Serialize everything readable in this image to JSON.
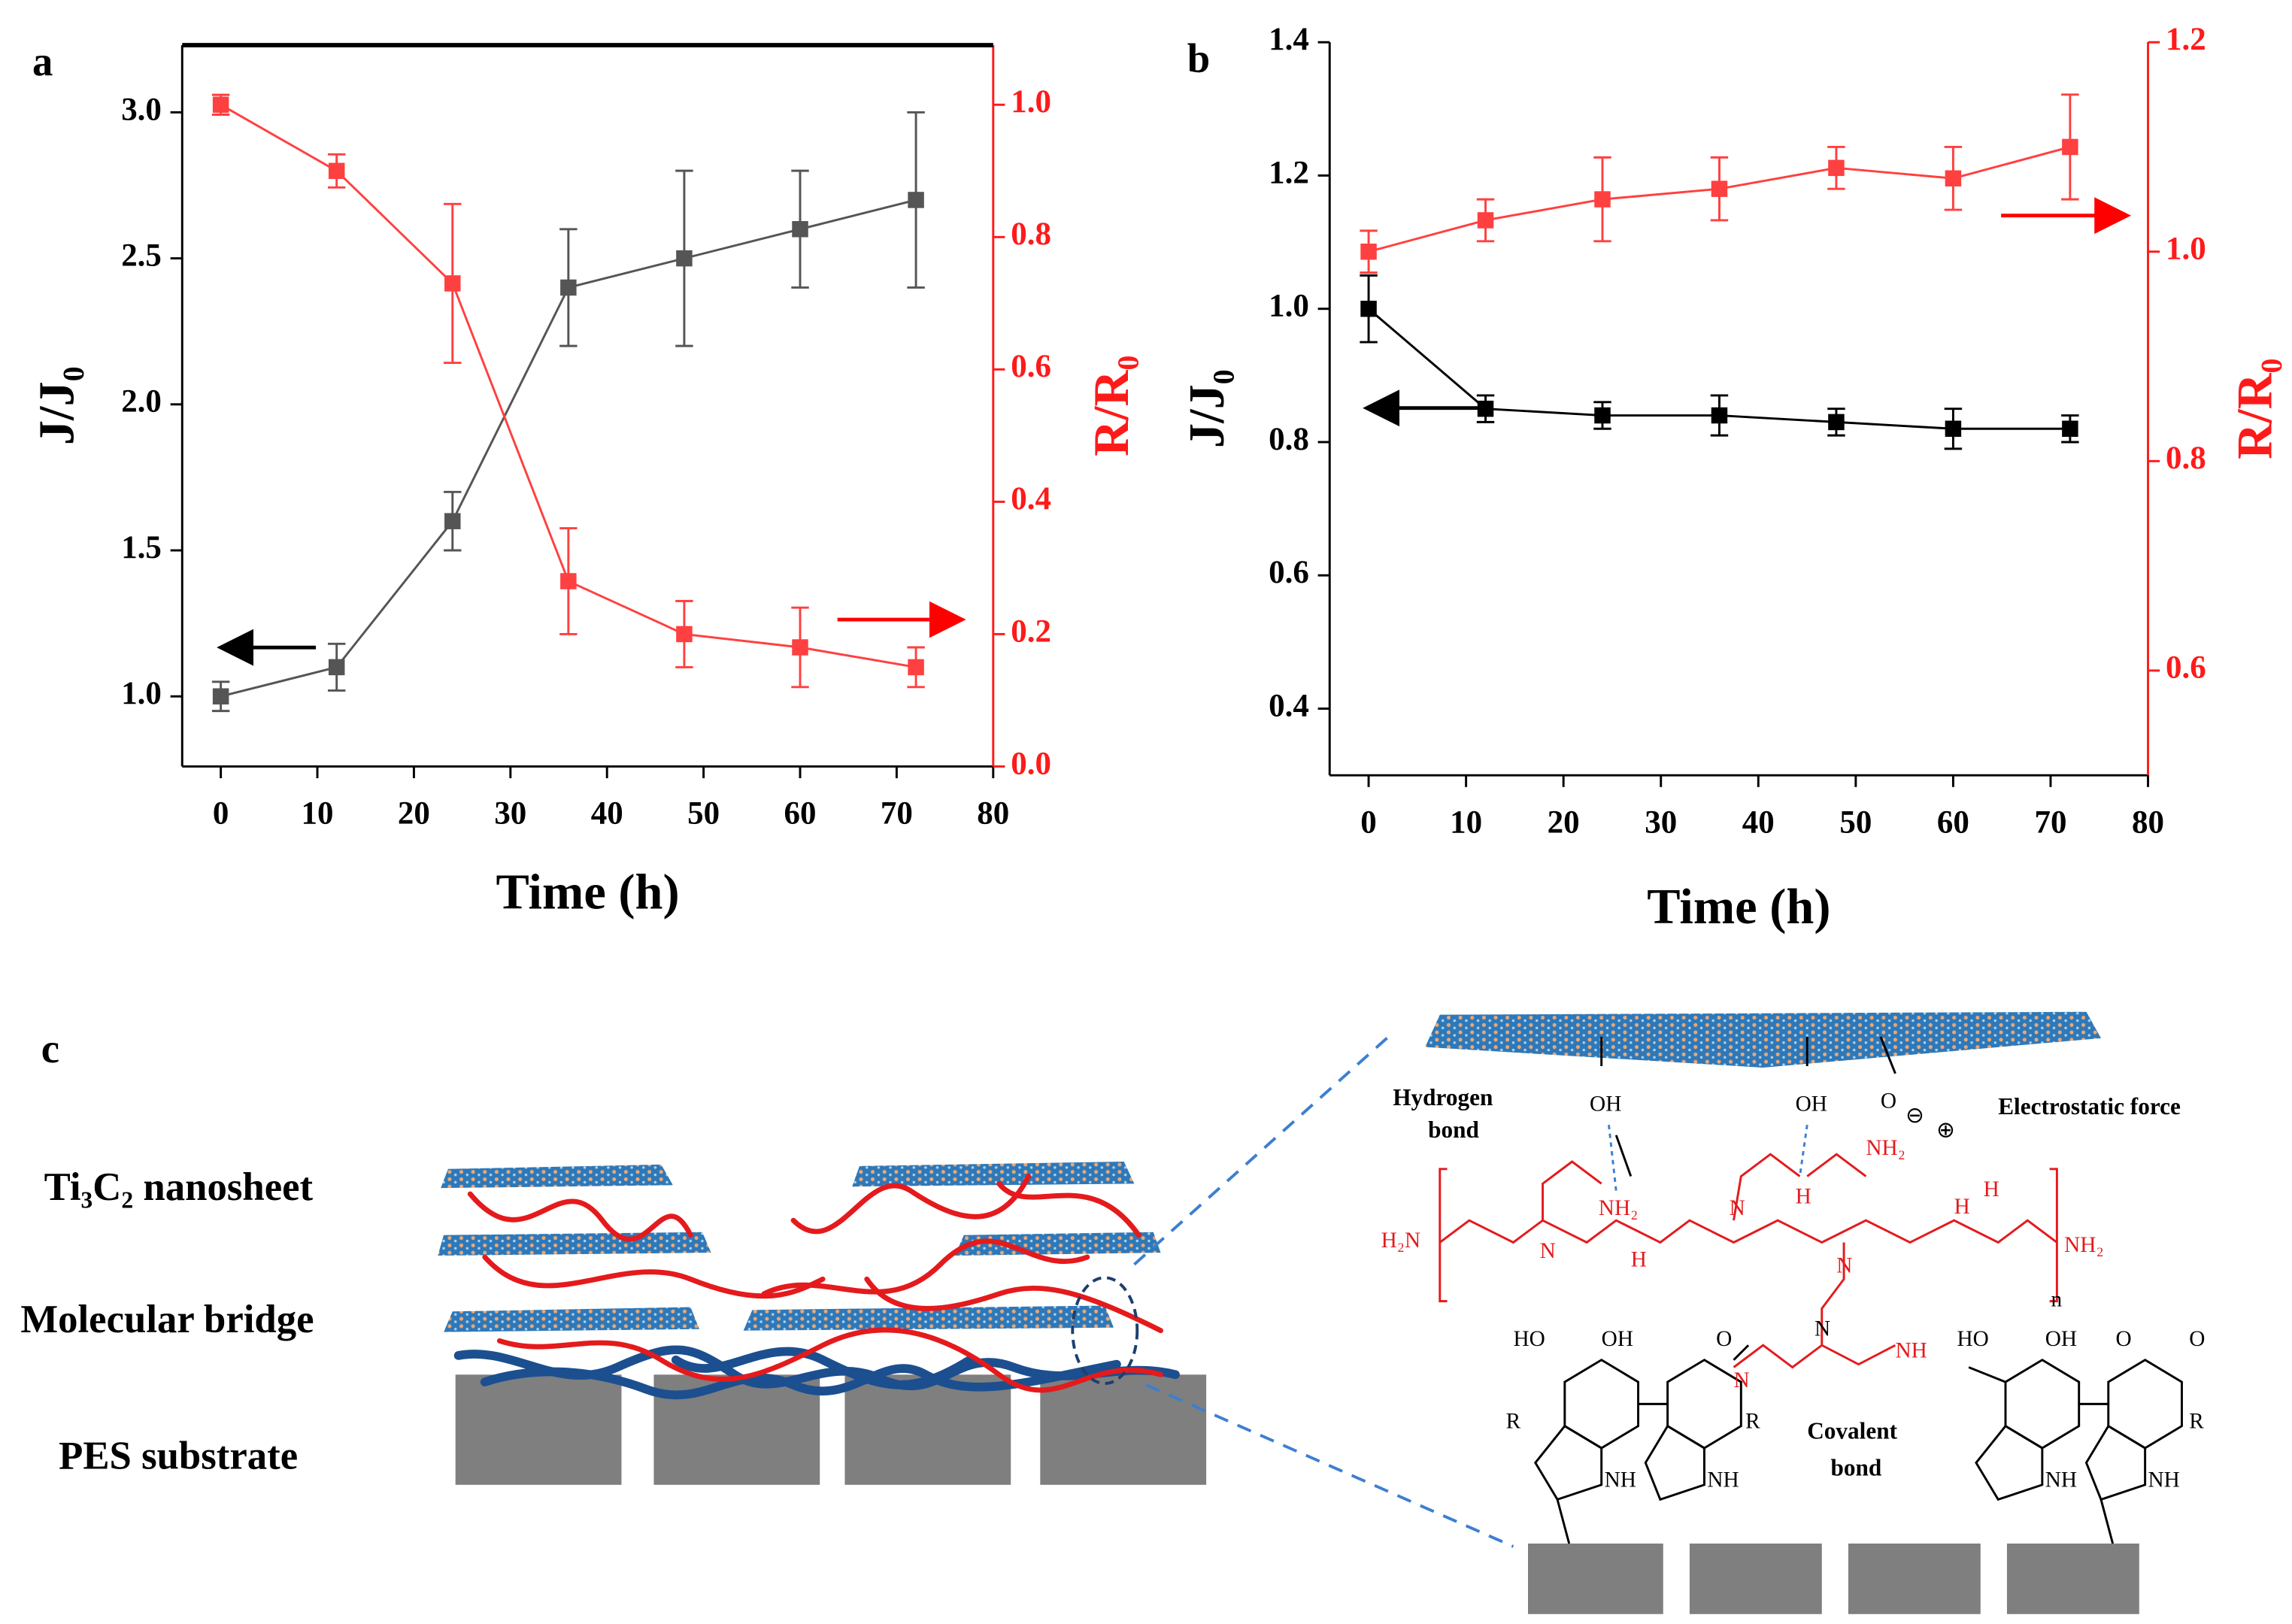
{
  "chart_data": [
    {
      "type": "line",
      "title": "a",
      "xlabel": "Time (h)",
      "ylabel": "J/J₀",
      "y2label": "R/R₀",
      "x": [
        0,
        12,
        24,
        36,
        48,
        60,
        72
      ],
      "xlim": [
        -4,
        80
      ],
      "xticks": [
        0,
        10,
        20,
        30,
        40,
        50,
        60,
        70,
        80
      ],
      "ylim": [
        0.76,
        3.23
      ],
      "yticks": [
        {
          "value": 1,
          "label": "1.0"
        },
        1.5,
        {
          "value": 2,
          "label": "2.0"
        },
        2.5,
        {
          "value": 3,
          "label": "3.0"
        }
      ],
      "y2lim": [
        0,
        1.09
      ],
      "y2ticks": [
        {
          "value": 0,
          "label": "0.0"
        },
        0.2,
        0.4,
        0.6,
        0.8,
        {
          "value": 1,
          "label": "1.0"
        }
      ],
      "series": [
        {
          "name": "J/J₀",
          "color": "#555555",
          "values": [
            1.0,
            1.1,
            1.6,
            2.4,
            2.5,
            2.6,
            2.7
          ],
          "errors": [
            0.05,
            0.08,
            0.1,
            0.2,
            0.3,
            0.2,
            0.3
          ]
        },
        {
          "name": "R/R₀",
          "color": "#ff4040",
          "axis": "y2",
          "values": [
            1.0,
            0.9,
            0.73,
            0.28,
            0.2,
            0.18,
            0.15
          ],
          "errors": [
            0.015,
            0.025,
            0.12,
            0.08,
            0.05,
            0.06,
            0.03
          ]
        }
      ]
    },
    {
      "type": "line",
      "title": "b",
      "xlabel": "Time (h)",
      "ylabel": "J/J₀",
      "y2label": "R/R₀",
      "x": [
        0,
        12,
        24,
        36,
        48,
        60,
        72
      ],
      "xlim": [
        -4,
        80
      ],
      "xticks": [
        0,
        10,
        20,
        30,
        40,
        50,
        60,
        70,
        80
      ],
      "ylim": [
        0.3,
        1.4
      ],
      "yticks": [
        0.4,
        0.6,
        0.8,
        {
          "value": 1,
          "label": "1.0"
        },
        1.2,
        1.4
      ],
      "y2lim": [
        0.5,
        1.2
      ],
      "y2ticks": [
        0.6,
        0.8,
        {
          "value": 1,
          "label": "1.0"
        },
        1.2
      ],
      "series": [
        {
          "name": "J/J₀",
          "color": "#000000",
          "values": [
            1.0,
            0.85,
            0.84,
            0.84,
            0.83,
            0.82,
            0.82
          ],
          "errors": [
            0.05,
            0.02,
            0.02,
            0.03,
            0.02,
            0.03,
            0.02
          ]
        },
        {
          "name": "R/R₀",
          "color": "#ff4040",
          "axis": "y2",
          "values": [
            1.0,
            1.03,
            1.05,
            1.06,
            1.08,
            1.07,
            1.1
          ],
          "errors": [
            0.02,
            0.02,
            0.04,
            0.03,
            0.02,
            0.03,
            0.05
          ]
        }
      ]
    }
  ],
  "diagram": {
    "panel": "c",
    "layers": [
      "Ti₃C₂ nanosheet",
      "Molecular bridge",
      "PES substrate"
    ],
    "hydrogen_bond": [
      "Hydrogen",
      "bond"
    ],
    "electrostatic": "Electrostatic force",
    "covalent_bond": [
      "Covalent",
      "bond"
    ],
    "chem_labels": [
      "OH",
      "OH",
      "O",
      "⊖",
      "⊕",
      "NH₂",
      "H",
      "NH₂",
      "N",
      "N",
      "N",
      "H",
      "H",
      "H",
      "H₂N",
      "NH₂",
      "n",
      "N",
      "N",
      "NH",
      "HO",
      "OH",
      "O",
      "R",
      "R",
      "NH",
      "NH",
      "HO",
      "OH",
      "O",
      "O",
      "R",
      "NH",
      "NH"
    ]
  }
}
